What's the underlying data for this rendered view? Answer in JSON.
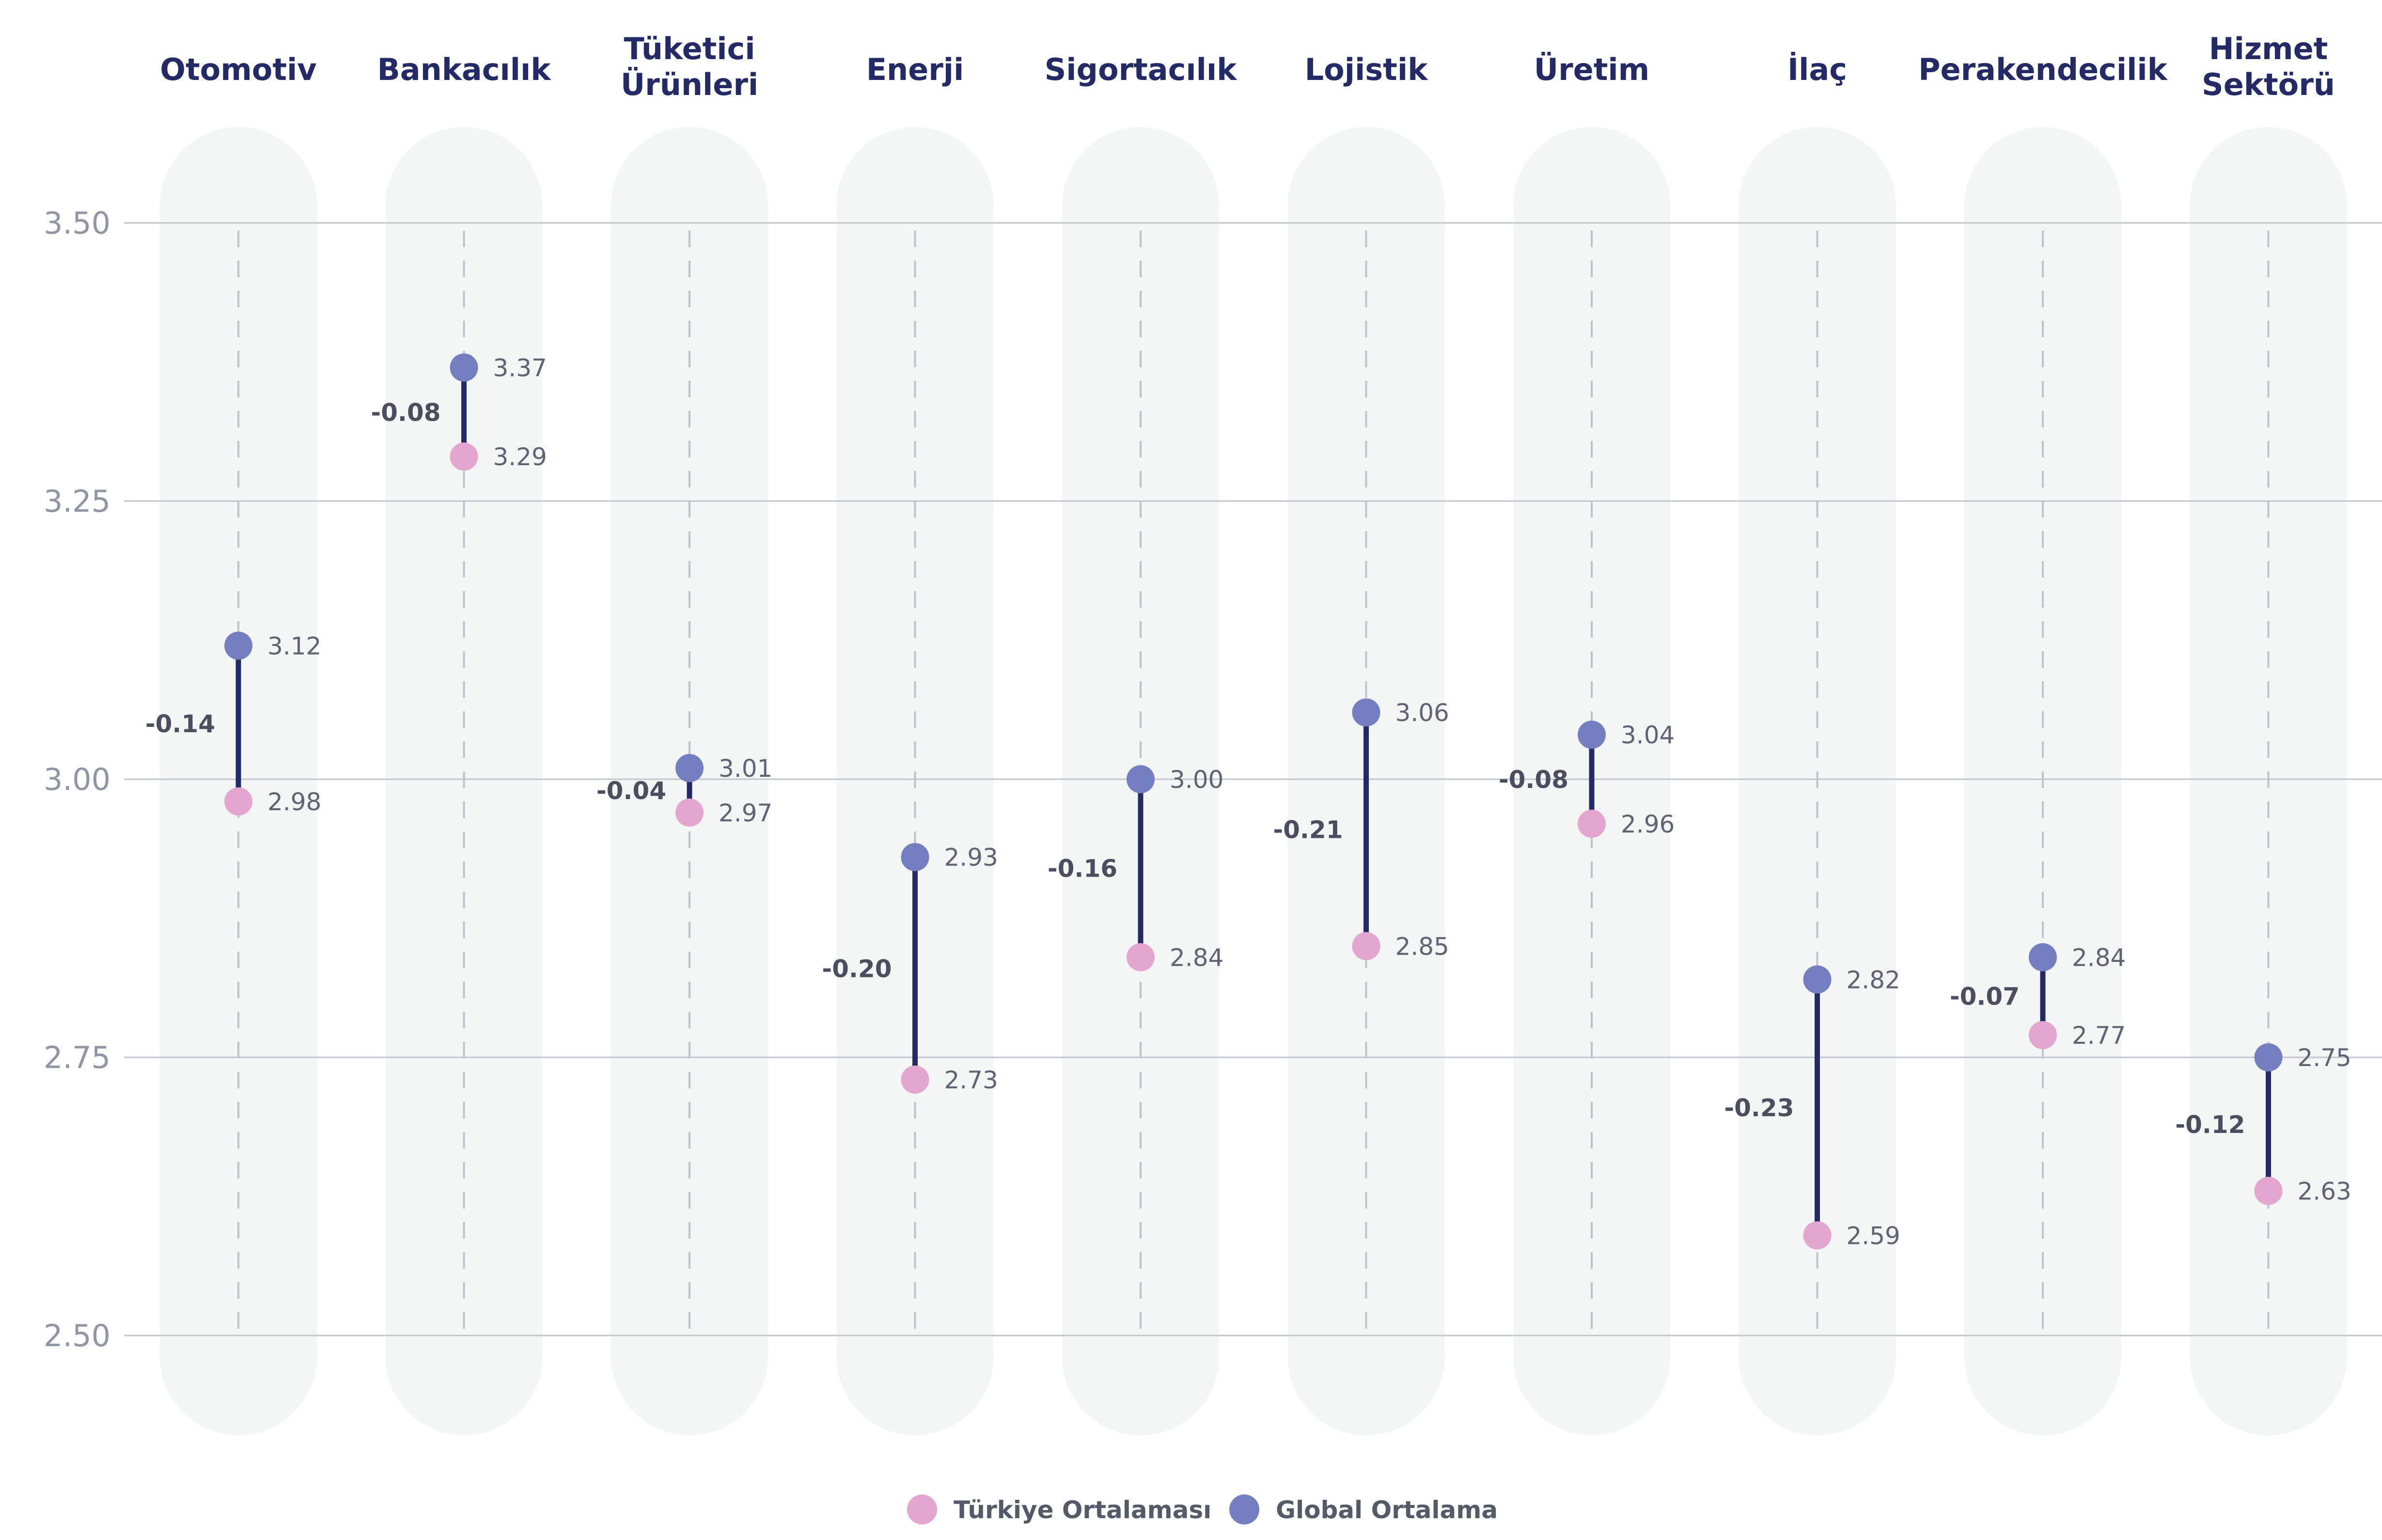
{
  "chart_data": {
    "type": "dumbbell",
    "categories": [
      [
        "Otomotiv"
      ],
      [
        "Bankacılık"
      ],
      [
        "Tüketici",
        "Ürünleri"
      ],
      [
        "Enerji"
      ],
      [
        "Sigortacılık"
      ],
      [
        "Lojistik"
      ],
      [
        "Üretim"
      ],
      [
        "İlaç"
      ],
      [
        "Perakendecilik"
      ],
      [
        "Hizmet",
        "Sektörü"
      ]
    ],
    "series": [
      {
        "name": "Türkiye Ortalaması",
        "color": "#e3a6cf",
        "values": [
          2.98,
          3.29,
          2.97,
          2.73,
          2.84,
          2.85,
          2.96,
          2.59,
          2.77,
          2.63
        ]
      },
      {
        "name": "Global Ortalama",
        "color": "#737fc1",
        "values": [
          3.12,
          3.37,
          3.01,
          2.93,
          3.0,
          3.06,
          3.04,
          2.82,
          2.84,
          2.75
        ]
      }
    ],
    "differences": [
      "-0.14",
      "-0.08",
      "-0.04",
      "-0.20",
      "-0.16",
      "-0.21",
      "-0.08",
      "-0.23",
      "-0.07",
      "-0.12"
    ],
    "yticks": [
      "2.50",
      "2.75",
      "3.00",
      "3.25",
      "3.50"
    ],
    "ylim": [
      2.5,
      3.5
    ],
    "grid": true,
    "legend_position": "bottom-center",
    "colors": {
      "connector": "#232a66",
      "pill": "#f4f5f5",
      "grid": "#c2c5cd",
      "guide": "#c0c2c8"
    }
  }
}
